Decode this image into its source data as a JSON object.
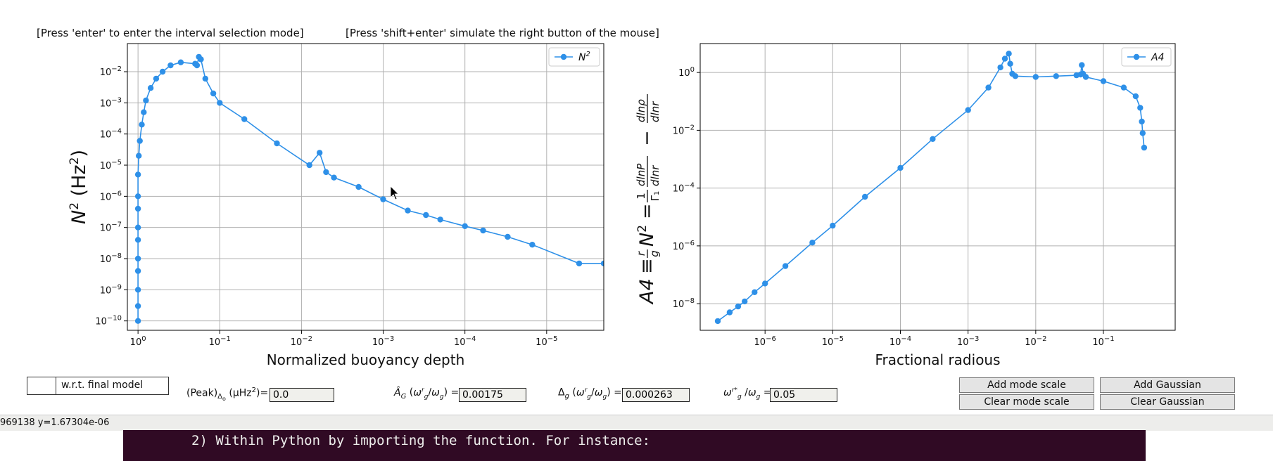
{
  "hints": {
    "left": "[Press 'enter' to enter the interval selection mode]",
    "right": "[Press 'shift+enter' simulate the right button of the mouse]"
  },
  "chart_data": [
    {
      "type": "line",
      "ylabel": "N² (Hz²)",
      "xlabel": "Normalized buoyancy depth",
      "x_scale": "log-reversed",
      "y_scale": "log",
      "xlim": [
        1.35,
        2e-06
      ],
      "ylim": [
        5e-11,
        0.08
      ],
      "x_ticks": [
        {
          "value": 1,
          "exp": "0"
        },
        {
          "value": 0.1,
          "exp": "−1"
        },
        {
          "value": 0.01,
          "exp": "−2"
        },
        {
          "value": 0.001,
          "exp": "−3"
        },
        {
          "value": 0.0001,
          "exp": "−4"
        },
        {
          "value": 1e-05,
          "exp": "−5"
        }
      ],
      "y_ticks": [
        {
          "value": 1e-10,
          "exp": "−10"
        },
        {
          "value": 1e-09,
          "exp": "−9"
        },
        {
          "value": 1e-08,
          "exp": "−8"
        },
        {
          "value": 1e-07,
          "exp": "−7"
        },
        {
          "value": 1e-06,
          "exp": "−6"
        },
        {
          "value": 1e-05,
          "exp": "−5"
        },
        {
          "value": 0.0001,
          "exp": "−4"
        },
        {
          "value": 0.001,
          "exp": "−3"
        },
        {
          "value": 0.01,
          "exp": "−2"
        }
      ],
      "grid": true,
      "legend_position": "top-right",
      "color": "#2e90e8",
      "series": [
        {
          "name": "N²",
          "points": [
            [
              1.0,
              1e-10
            ],
            [
              1.0,
              3e-10
            ],
            [
              1.0,
              1e-09
            ],
            [
              1.0,
              4e-09
            ],
            [
              1.0,
              1e-08
            ],
            [
              1.0,
              4e-08
            ],
            [
              1.0,
              1e-07
            ],
            [
              1.0,
              4e-07
            ],
            [
              1.0,
              1e-06
            ],
            [
              1.0,
              5e-06
            ],
            [
              0.98,
              2e-05
            ],
            [
              0.95,
              6e-05
            ],
            [
              0.9,
              0.0002
            ],
            [
              0.85,
              0.0005
            ],
            [
              0.8,
              0.0012
            ],
            [
              0.7,
              0.003
            ],
            [
              0.6,
              0.006
            ],
            [
              0.5,
              0.01
            ],
            [
              0.4,
              0.016
            ],
            [
              0.3,
              0.02
            ],
            [
              0.2,
              0.018
            ],
            [
              0.19,
              0.016
            ],
            [
              0.18,
              0.03
            ],
            [
              0.17,
              0.025
            ],
            [
              0.15,
              0.006
            ],
            [
              0.12,
              0.002
            ],
            [
              0.1,
              0.001
            ],
            [
              0.05,
              0.0003
            ],
            [
              0.02,
              5e-05
            ],
            [
              0.008,
              1e-05
            ],
            [
              0.006,
              2.5e-05
            ],
            [
              0.005,
              6e-06
            ],
            [
              0.004,
              4e-06
            ],
            [
              0.002,
              2e-06
            ],
            [
              0.001,
              8e-07
            ],
            [
              0.0005,
              3.5e-07
            ],
            [
              0.0003,
              2.5e-07
            ],
            [
              0.0002,
              1.8e-07
            ],
            [
              0.0001,
              1.1e-07
            ],
            [
              6e-05,
              8e-08
            ],
            [
              3e-05,
              5e-08
            ],
            [
              1.5e-05,
              2.8e-08
            ],
            [
              4e-06,
              7e-09
            ],
            [
              2e-06,
              7e-09
            ]
          ]
        }
      ]
    },
    {
      "type": "line",
      "ylabel": "A4 ≡ (r/g) N² = (1/Γ₁) dlnP/dlnr − dlnρ/dlnr",
      "xlabel": "Fractional radious",
      "x_scale": "log",
      "y_scale": "log",
      "xlim": [
        1.1e-07,
        1.15
      ],
      "ylim": [
        1.2e-09,
        10
      ],
      "x_ticks": [
        {
          "value": 1e-06,
          "exp": "−6"
        },
        {
          "value": 1e-05,
          "exp": "−5"
        },
        {
          "value": 0.0001,
          "exp": "−4"
        },
        {
          "value": 0.001,
          "exp": "−3"
        },
        {
          "value": 0.01,
          "exp": "−2"
        },
        {
          "value": 0.1,
          "exp": "−1"
        }
      ],
      "y_ticks": [
        {
          "value": 1e-08,
          "exp": "−8"
        },
        {
          "value": 1e-06,
          "exp": "−6"
        },
        {
          "value": 0.0001,
          "exp": "−4"
        },
        {
          "value": 0.01,
          "exp": "−2"
        },
        {
          "value": 1,
          "exp": "0"
        }
      ],
      "grid": true,
      "legend_position": "top-right",
      "color": "#2e90e8",
      "series": [
        {
          "name": "A4",
          "points": [
            [
              2e-07,
              2.5e-09
            ],
            [
              3e-07,
              5e-09
            ],
            [
              4e-07,
              8e-09
            ],
            [
              5e-07,
              1.2e-08
            ],
            [
              7e-07,
              2.5e-08
            ],
            [
              1e-06,
              5e-08
            ],
            [
              2e-06,
              2e-07
            ],
            [
              5e-06,
              1.3e-06
            ],
            [
              1e-05,
              5e-06
            ],
            [
              3e-05,
              5e-05
            ],
            [
              0.0001,
              0.0005
            ],
            [
              0.0003,
              0.005
            ],
            [
              0.001,
              0.05
            ],
            [
              0.002,
              0.3
            ],
            [
              0.003,
              1.5
            ],
            [
              0.0035,
              3
            ],
            [
              0.004,
              4.5
            ],
            [
              0.0042,
              2
            ],
            [
              0.0045,
              0.9
            ],
            [
              0.005,
              0.75
            ],
            [
              0.01,
              0.7
            ],
            [
              0.02,
              0.75
            ],
            [
              0.04,
              0.8
            ],
            [
              0.046,
              0.85
            ],
            [
              0.048,
              1.8
            ],
            [
              0.05,
              0.9
            ],
            [
              0.055,
              0.7
            ],
            [
              0.1,
              0.5
            ],
            [
              0.2,
              0.3
            ],
            [
              0.3,
              0.15
            ],
            [
              0.35,
              0.06
            ],
            [
              0.37,
              0.02
            ],
            [
              0.38,
              0.008
            ],
            [
              0.4,
              0.0025
            ]
          ]
        }
      ]
    }
  ],
  "controls": {
    "wrt_label": "w.r.t. final model",
    "peak_label": "(Peak)Δo (μHz²)=",
    "peak_value": "0.0",
    "ag_label": "ÂG (ωgr/ωg) =",
    "ag_value": "0.00175",
    "dg_label": "Δg (ωgr/ωg) =",
    "dg_value": "0.000263",
    "wg_label": "ωgr* /ωg =",
    "wg_value": "0.05",
    "add_mode_scale": "Add mode scale",
    "clear_mode_scale": "Clear mode scale",
    "add_gaussian": "Add Gaussian",
    "clear_gaussian": "Clear Gaussian"
  },
  "status": {
    "text": "969138  y=1.67304e-06"
  },
  "terminal": {
    "line": "2) Within Python by importing the function. For instance:"
  }
}
